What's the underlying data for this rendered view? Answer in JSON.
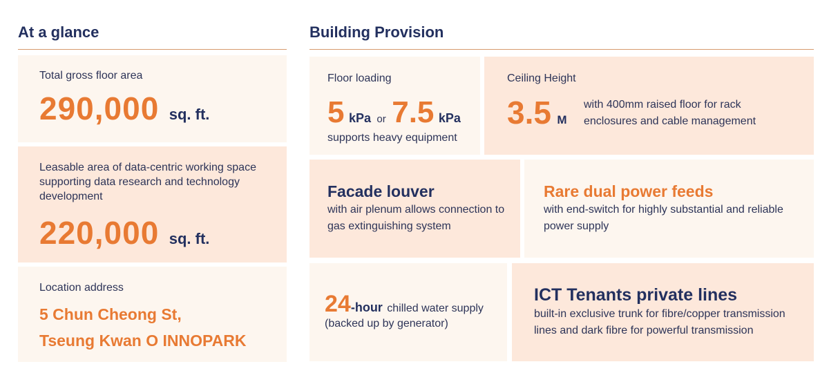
{
  "left": {
    "title": "At a glance",
    "cards": {
      "gross": {
        "label": "Total gross floor area",
        "value": "290,000",
        "unit": "sq. ft."
      },
      "leasable": {
        "label": "Leasable area of data-centric working space supporting data research and technology development",
        "value": "220,000",
        "unit": "sq. ft."
      },
      "location": {
        "label": "Location address",
        "line1": "5 Chun Cheong St,",
        "line2": "Tseung Kwan O INNOPARK"
      }
    }
  },
  "right": {
    "title": "Building Provision",
    "floor": {
      "label": "Floor loading",
      "value1": "5",
      "unit1": "kPa",
      "or": "or",
      "value2": "7.5",
      "unit2": "kPa",
      "note": "supports heavy equipment"
    },
    "ceiling": {
      "label": "Ceiling Height",
      "value": "3.5",
      "unit": "M",
      "note": "with 400mm raised floor for rack enclosures and cable management"
    },
    "facade": {
      "title": "Facade louver",
      "note": "with air plenum allows connection to gas extinguishing system"
    },
    "power": {
      "title": "Rare dual power feeds",
      "note": "with end-switch for highly substantial and reliable power supply"
    },
    "water": {
      "value": "24",
      "suffix": "-hour",
      "note1": "chilled water supply",
      "note2": "(backed up by generator)"
    },
    "ict": {
      "title": "ICT Tenants private lines",
      "note": "built-in exclusive trunk for fibre/copper transmission lines and dark fibre for powerful transmission"
    }
  }
}
